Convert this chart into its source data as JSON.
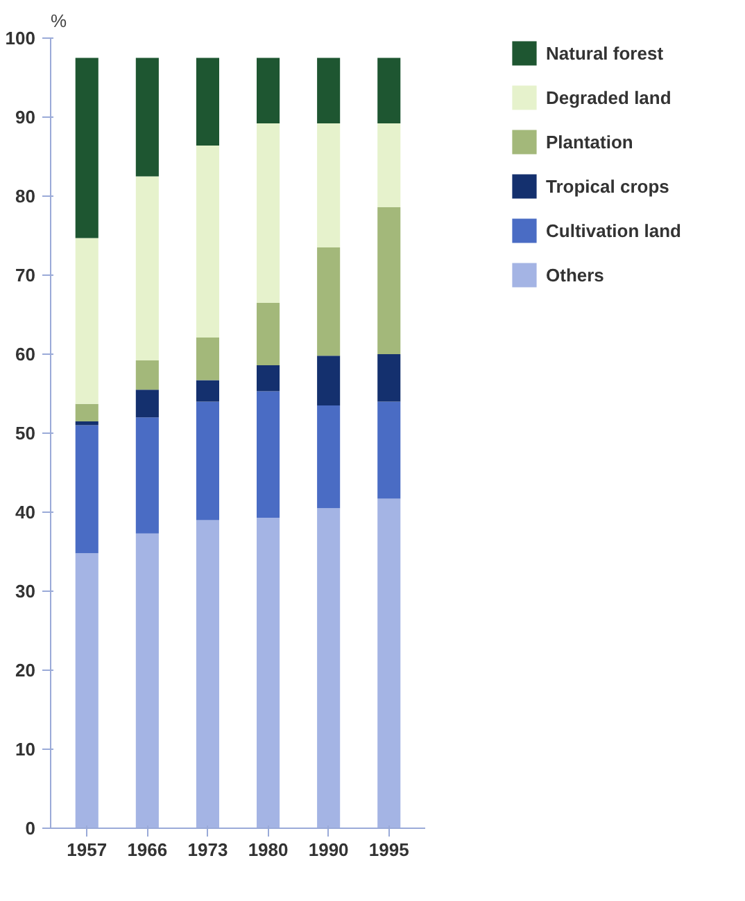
{
  "chart_data": {
    "type": "bar",
    "stacked": true,
    "ylabel": "%",
    "categories": [
      "1957",
      "1966",
      "1973",
      "1980",
      "1990",
      "1995"
    ],
    "ylim": [
      0,
      100
    ],
    "yticks": [
      0,
      10,
      20,
      30,
      40,
      50,
      60,
      70,
      80,
      90,
      100
    ],
    "grid": false,
    "legend": "right",
    "series": [
      {
        "name": "Others",
        "color": "#a4b4e4",
        "values": [
          34.8,
          37.3,
          39.0,
          39.3,
          40.5,
          41.7
        ]
      },
      {
        "name": "Cultivation land",
        "color": "#4a6cc4",
        "values": [
          16.2,
          14.7,
          15.0,
          16.0,
          13.0,
          12.3
        ]
      },
      {
        "name": "Tropical crops",
        "color": "#14306e",
        "values": [
          0.5,
          3.5,
          2.7,
          3.3,
          6.3,
          6.0
        ]
      },
      {
        "name": "Plantation",
        "color": "#a3b87a",
        "values": [
          2.2,
          3.7,
          5.4,
          7.9,
          13.7,
          18.6
        ]
      },
      {
        "name": "Degraded land",
        "color": "#e6f2cc",
        "values": [
          21.0,
          23.3,
          24.3,
          22.7,
          15.7,
          10.6
        ]
      },
      {
        "name": "Natural forest",
        "color": "#1e5631",
        "values": [
          22.8,
          15.0,
          11.1,
          8.3,
          8.3,
          8.3
        ]
      }
    ]
  }
}
